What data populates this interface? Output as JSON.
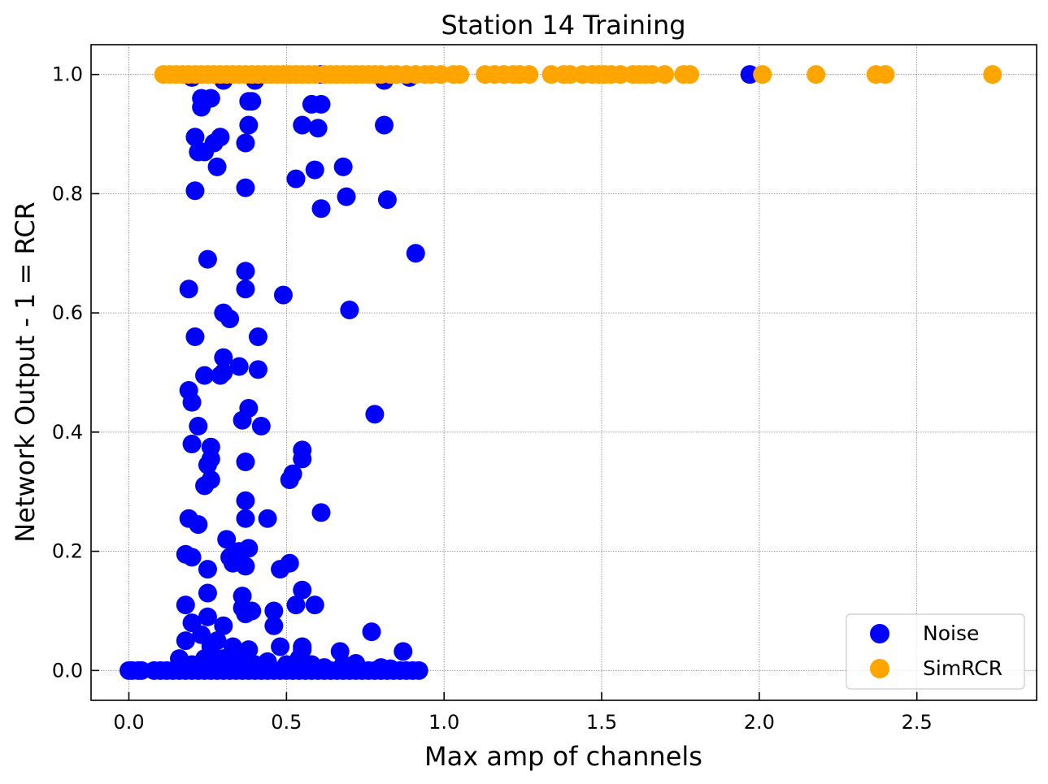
{
  "chart_data": {
    "type": "scatter",
    "title": "Station 14 Training",
    "xlabel": "Max amp of channels",
    "ylabel": "Network Output - 1 = RCR",
    "xlim": [
      -0.12,
      2.88
    ],
    "ylim": [
      -0.05,
      1.05
    ],
    "xticks": [
      0.0,
      0.5,
      1.0,
      1.5,
      2.0,
      2.5
    ],
    "xtick_labels": [
      "0.0",
      "0.5",
      "1.0",
      "1.5",
      "2.0",
      "2.5"
    ],
    "yticks": [
      0.0,
      0.2,
      0.4,
      0.6,
      0.8,
      1.0
    ],
    "ytick_labels": [
      "0.0",
      "0.2",
      "0.4",
      "0.6",
      "0.8",
      "1.0"
    ],
    "grid": true,
    "legend_position": "lower-right",
    "series": [
      {
        "name": "Noise",
        "color": "#0000ff",
        "points": [
          [
            0.0,
            0.0
          ],
          [
            0.01,
            0.0
          ],
          [
            0.03,
            0.0
          ],
          [
            0.04,
            0.0
          ],
          [
            0.08,
            0.0
          ],
          [
            0.1,
            0.0
          ],
          [
            0.12,
            0.0
          ],
          [
            0.14,
            0.0
          ],
          [
            0.16,
            0.0
          ],
          [
            0.18,
            0.0
          ],
          [
            0.2,
            0.0
          ],
          [
            0.22,
            0.0
          ],
          [
            0.24,
            0.0
          ],
          [
            0.26,
            0.0
          ],
          [
            0.28,
            0.0
          ],
          [
            0.3,
            0.0
          ],
          [
            0.32,
            0.0
          ],
          [
            0.34,
            0.0
          ],
          [
            0.36,
            0.0
          ],
          [
            0.38,
            0.0
          ],
          [
            0.4,
            0.0
          ],
          [
            0.42,
            0.0
          ],
          [
            0.44,
            0.0
          ],
          [
            0.46,
            0.0
          ],
          [
            0.48,
            0.0
          ],
          [
            0.5,
            0.0
          ],
          [
            0.52,
            0.0
          ],
          [
            0.54,
            0.0
          ],
          [
            0.56,
            0.0
          ],
          [
            0.58,
            0.0
          ],
          [
            0.6,
            0.0
          ],
          [
            0.62,
            0.0
          ],
          [
            0.64,
            0.0
          ],
          [
            0.66,
            0.0
          ],
          [
            0.68,
            0.0
          ],
          [
            0.7,
            0.0
          ],
          [
            0.72,
            0.0
          ],
          [
            0.74,
            0.0
          ],
          [
            0.76,
            0.0
          ],
          [
            0.78,
            0.0
          ],
          [
            0.8,
            0.0
          ],
          [
            0.82,
            0.0
          ],
          [
            0.84,
            0.0
          ],
          [
            0.86,
            0.0
          ],
          [
            0.88,
            0.0
          ],
          [
            0.9,
            0.0
          ],
          [
            0.92,
            0.0
          ],
          [
            0.16,
            0.02
          ],
          [
            0.2,
            0.01
          ],
          [
            0.24,
            0.02
          ],
          [
            0.27,
            0.01
          ],
          [
            0.3,
            0.02
          ],
          [
            0.33,
            0.01
          ],
          [
            0.36,
            0.02
          ],
          [
            0.4,
            0.01
          ],
          [
            0.44,
            0.015
          ],
          [
            0.5,
            0.01
          ],
          [
            0.54,
            0.02
          ],
          [
            0.58,
            0.01
          ],
          [
            0.62,
            0.005
          ],
          [
            0.68,
            0.01
          ],
          [
            0.72,
            0.012
          ],
          [
            0.8,
            0.005
          ],
          [
            0.83,
            0.003
          ],
          [
            0.18,
            0.05
          ],
          [
            0.2,
            0.08
          ],
          [
            0.23,
            0.06
          ],
          [
            0.25,
            0.09
          ],
          [
            0.26,
            0.04
          ],
          [
            0.28,
            0.05
          ],
          [
            0.3,
            0.075
          ],
          [
            0.33,
            0.04
          ],
          [
            0.35,
            0.03
          ],
          [
            0.38,
            0.035
          ],
          [
            0.46,
            0.075
          ],
          [
            0.48,
            0.04
          ],
          [
            0.55,
            0.04
          ],
          [
            0.55,
            0.035
          ],
          [
            0.67,
            0.032
          ],
          [
            0.77,
            0.065
          ],
          [
            0.87,
            0.032
          ],
          [
            0.18,
            0.11
          ],
          [
            0.25,
            0.13
          ],
          [
            0.36,
            0.125
          ],
          [
            0.36,
            0.105
          ],
          [
            0.37,
            0.095
          ],
          [
            0.39,
            0.1
          ],
          [
            0.46,
            0.1
          ],
          [
            0.53,
            0.11
          ],
          [
            0.55,
            0.135
          ],
          [
            0.59,
            0.11
          ],
          [
            0.18,
            0.195
          ],
          [
            0.2,
            0.19
          ],
          [
            0.25,
            0.17
          ],
          [
            0.31,
            0.22
          ],
          [
            0.32,
            0.19
          ],
          [
            0.33,
            0.18
          ],
          [
            0.35,
            0.2
          ],
          [
            0.37,
            0.175
          ],
          [
            0.38,
            0.205
          ],
          [
            0.48,
            0.17
          ],
          [
            0.51,
            0.18
          ],
          [
            0.19,
            0.255
          ],
          [
            0.22,
            0.245
          ],
          [
            0.24,
            0.31
          ],
          [
            0.26,
            0.32
          ],
          [
            0.25,
            0.345
          ],
          [
            0.26,
            0.355
          ],
          [
            0.26,
            0.375
          ],
          [
            0.37,
            0.255
          ],
          [
            0.37,
            0.285
          ],
          [
            0.37,
            0.35
          ],
          [
            0.44,
            0.255
          ],
          [
            0.51,
            0.32
          ],
          [
            0.52,
            0.33
          ],
          [
            0.55,
            0.355
          ],
          [
            0.55,
            0.37
          ],
          [
            0.61,
            0.265
          ],
          [
            0.2,
            0.38
          ],
          [
            0.22,
            0.41
          ],
          [
            0.2,
            0.45
          ],
          [
            0.19,
            0.47
          ],
          [
            0.24,
            0.495
          ],
          [
            0.29,
            0.495
          ],
          [
            0.3,
            0.525
          ],
          [
            0.3,
            0.5
          ],
          [
            0.35,
            0.51
          ],
          [
            0.36,
            0.42
          ],
          [
            0.38,
            0.44
          ],
          [
            0.41,
            0.505
          ],
          [
            0.42,
            0.41
          ],
          [
            0.78,
            0.43
          ],
          [
            0.19,
            0.64
          ],
          [
            0.21,
            0.56
          ],
          [
            0.25,
            0.69
          ],
          [
            0.3,
            0.6
          ],
          [
            0.32,
            0.59
          ],
          [
            0.37,
            0.64
          ],
          [
            0.37,
            0.67
          ],
          [
            0.41,
            0.56
          ],
          [
            0.49,
            0.63
          ],
          [
            0.7,
            0.605
          ],
          [
            0.91,
            0.7
          ],
          [
            0.21,
            0.805
          ],
          [
            0.22,
            0.87
          ],
          [
            0.21,
            0.895
          ],
          [
            0.24,
            0.87
          ],
          [
            0.27,
            0.885
          ],
          [
            0.28,
            0.845
          ],
          [
            0.29,
            0.895
          ],
          [
            0.37,
            0.81
          ],
          [
            0.37,
            0.885
          ],
          [
            0.38,
            0.915
          ],
          [
            0.53,
            0.825
          ],
          [
            0.55,
            0.915
          ],
          [
            0.59,
            0.84
          ],
          [
            0.6,
            0.91
          ],
          [
            0.61,
            0.775
          ],
          [
            0.68,
            0.845
          ],
          [
            0.69,
            0.795
          ],
          [
            0.81,
            0.915
          ],
          [
            0.82,
            0.79
          ],
          [
            0.2,
            0.995
          ],
          [
            0.23,
            0.96
          ],
          [
            0.23,
            0.945
          ],
          [
            0.26,
            0.96
          ],
          [
            0.3,
            0.99
          ],
          [
            0.38,
            0.955
          ],
          [
            0.39,
            0.955
          ],
          [
            0.4,
            0.99
          ],
          [
            0.58,
            0.95
          ],
          [
            0.61,
            0.95
          ],
          [
            0.61,
            1.0
          ],
          [
            0.81,
            0.99
          ],
          [
            0.89,
            0.995
          ],
          [
            1.97,
            1.0
          ]
        ]
      },
      {
        "name": "SimRCR",
        "color": "#ffa500",
        "points": [
          [
            0.11,
            1.0
          ],
          [
            0.13,
            1.0
          ],
          [
            0.15,
            1.0
          ],
          [
            0.17,
            1.0
          ],
          [
            0.19,
            1.0
          ],
          [
            0.21,
            1.0
          ],
          [
            0.23,
            1.0
          ],
          [
            0.25,
            1.0
          ],
          [
            0.27,
            1.0
          ],
          [
            0.29,
            1.0
          ],
          [
            0.31,
            1.0
          ],
          [
            0.33,
            1.0
          ],
          [
            0.35,
            1.0
          ],
          [
            0.37,
            1.0
          ],
          [
            0.39,
            1.0
          ],
          [
            0.41,
            1.0
          ],
          [
            0.43,
            1.0
          ],
          [
            0.45,
            1.0
          ],
          [
            0.47,
            1.0
          ],
          [
            0.49,
            1.0
          ],
          [
            0.51,
            1.0
          ],
          [
            0.53,
            1.0
          ],
          [
            0.55,
            1.0
          ],
          [
            0.57,
            1.0
          ],
          [
            0.59,
            1.0
          ],
          [
            0.62,
            1.0
          ],
          [
            0.64,
            1.0
          ],
          [
            0.66,
            1.0
          ],
          [
            0.68,
            1.0
          ],
          [
            0.7,
            1.0
          ],
          [
            0.72,
            1.0
          ],
          [
            0.74,
            1.0
          ],
          [
            0.76,
            1.0
          ],
          [
            0.78,
            1.0
          ],
          [
            0.8,
            1.0
          ],
          [
            0.83,
            1.0
          ],
          [
            0.85,
            1.0
          ],
          [
            0.88,
            1.0
          ],
          [
            0.91,
            1.0
          ],
          [
            0.94,
            1.0
          ],
          [
            0.96,
            1.0
          ],
          [
            0.99,
            1.0
          ],
          [
            1.03,
            1.0
          ],
          [
            1.05,
            1.0
          ],
          [
            1.13,
            1.0
          ],
          [
            1.16,
            1.0
          ],
          [
            1.19,
            1.0
          ],
          [
            1.22,
            1.0
          ],
          [
            1.24,
            1.0
          ],
          [
            1.27,
            1.0
          ],
          [
            1.34,
            1.0
          ],
          [
            1.38,
            1.0
          ],
          [
            1.4,
            1.0
          ],
          [
            1.44,
            1.0
          ],
          [
            1.47,
            1.0
          ],
          [
            1.49,
            1.0
          ],
          [
            1.51,
            1.0
          ],
          [
            1.53,
            1.0
          ],
          [
            1.56,
            1.0
          ],
          [
            1.6,
            1.0
          ],
          [
            1.62,
            1.0
          ],
          [
            1.64,
            1.0
          ],
          [
            1.66,
            1.0
          ],
          [
            1.7,
            1.0
          ],
          [
            1.76,
            1.0
          ],
          [
            1.78,
            1.0
          ],
          [
            2.01,
            1.0
          ],
          [
            2.18,
            1.0
          ],
          [
            2.37,
            1.0
          ],
          [
            2.4,
            1.0
          ],
          [
            2.74,
            1.0
          ]
        ]
      }
    ]
  }
}
